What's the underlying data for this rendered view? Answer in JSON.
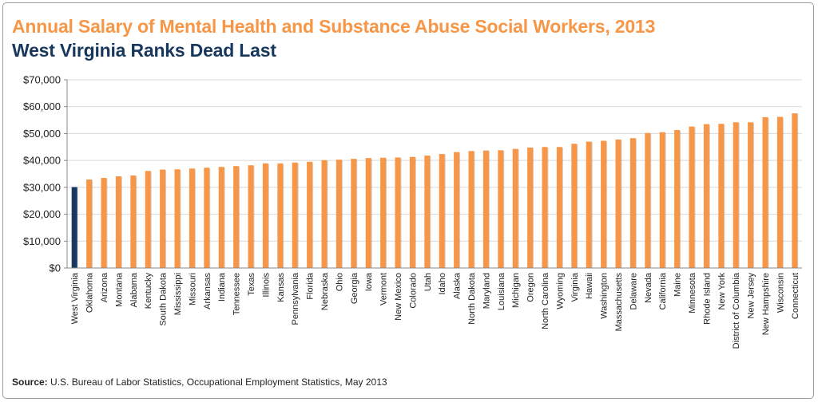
{
  "title": "Annual Salary of Mental Health and Substance Abuse Social Workers, 2013",
  "subtitle": "West Virginia Ranks Dead Last",
  "source": {
    "label": "Source:",
    "text": "U.S. Bureau of Labor Statistics, Occupational Employment Statistics, May 2013"
  },
  "colors": {
    "bar": "#f79646",
    "highlight": "#17375e",
    "title": "#f79646",
    "subtitle": "#17375e",
    "grid": "#d9d9d9"
  },
  "chart_data": {
    "type": "bar",
    "title": "Annual Salary of Mental Health and Substance Abuse Social Workers, 2013",
    "subtitle": "West Virginia Ranks Dead Last",
    "xlabel": "",
    "ylabel": "",
    "ylim": [
      0,
      70000
    ],
    "yticks": [
      0,
      10000,
      20000,
      30000,
      40000,
      50000,
      60000,
      70000
    ],
    "ytick_labels": [
      "$0",
      "$10,000",
      "$20,000",
      "$30,000",
      "$40,000",
      "$50,000",
      "$60,000",
      "$70,000"
    ],
    "grid": true,
    "highlight_category": "West Virginia",
    "categories": [
      "West Virginia",
      "Oklahoma",
      "Arizona",
      "Montana",
      "Alabama",
      "Kentucky",
      "South Dakota",
      "Mississippi",
      "Missouri",
      "Arkansas",
      "Indiana",
      "Tennessee",
      "Texas",
      "Illinois",
      "Kansas",
      "Pennsylvania",
      "Florida",
      "Nebraska",
      "Ohio",
      "Georgia",
      "Iowa",
      "Vermont",
      "New Mexico",
      "Colorado",
      "Utah",
      "Idaho",
      "Alaska",
      "North Dakota",
      "Maryland",
      "Louisiana",
      "Michigan",
      "Oregon",
      "North Carolina",
      "Wyoming",
      "Virginia",
      "Hawaii",
      "Washington",
      "Massachusetts",
      "Delaware",
      "Nevada",
      "California",
      "Maine",
      "Minnesota",
      "Rhode Island",
      "New York",
      "District of Columbia",
      "New Jersey",
      "New Hampshire",
      "Wisconsin",
      "Connecticut"
    ],
    "values": [
      30100,
      32900,
      33500,
      34100,
      34400,
      36100,
      36600,
      36700,
      37000,
      37300,
      37600,
      37900,
      38200,
      38900,
      38900,
      39200,
      39500,
      40100,
      40300,
      40600,
      40900,
      41000,
      41100,
      41300,
      41800,
      42400,
      43100,
      43500,
      43700,
      43800,
      44300,
      44800,
      45000,
      45000,
      46200,
      47000,
      47300,
      47800,
      48300,
      50200,
      50500,
      51300,
      52600,
      53500,
      53600,
      54200,
      54200,
      56100,
      56200,
      57500
    ]
  }
}
